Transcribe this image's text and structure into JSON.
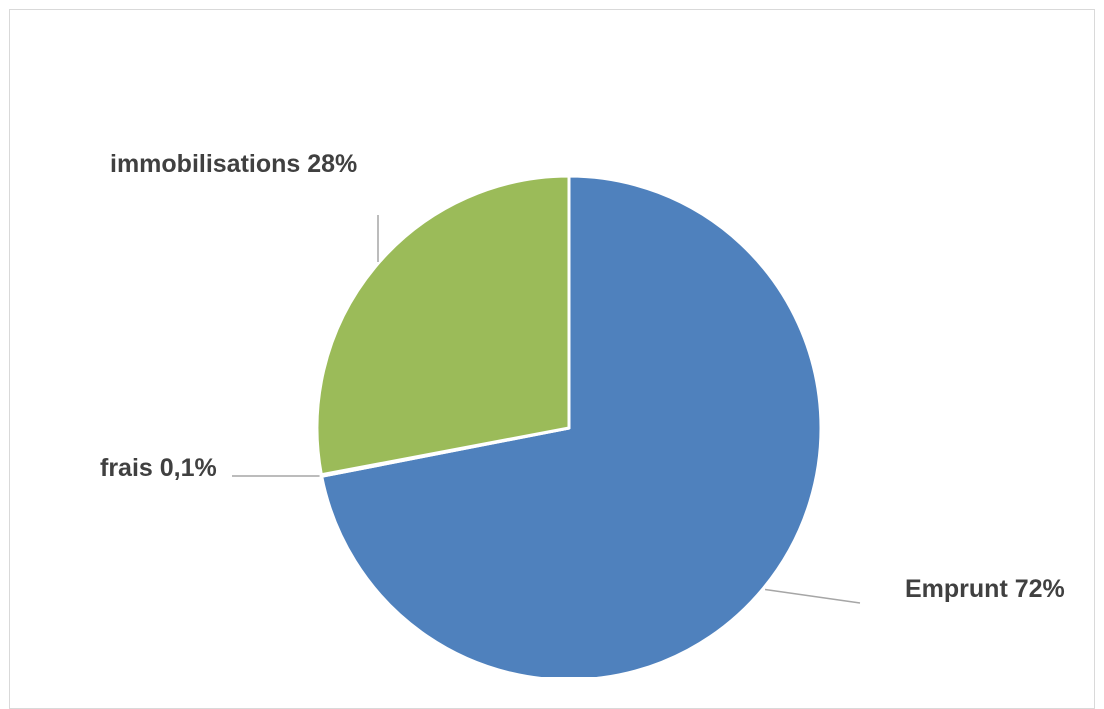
{
  "chart_data": {
    "type": "pie",
    "title": "",
    "slices": [
      {
        "label": "Emprunt",
        "value": 72,
        "display": "Emprunt 72%",
        "color": "#4f81bd"
      },
      {
        "label": "frais",
        "value": 0.1,
        "display": "frais 0,1%",
        "color": "#c0504d"
      },
      {
        "label": "immobilisations",
        "value": 28,
        "display": "immobilisations 28%",
        "color": "#9bbb59"
      }
    ],
    "data_labels": "outside with leader lines",
    "legend": "none"
  }
}
